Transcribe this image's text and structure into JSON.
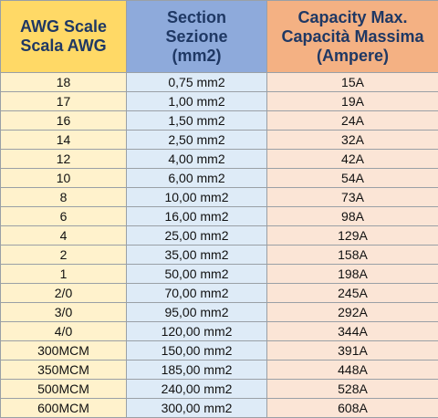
{
  "headers": {
    "awg": "AWG Scale\nScala AWG",
    "section": "Section\nSezione\n(mm2)",
    "capacity": "Capacity Max.\nCapacità Massima\n(Ampere)"
  },
  "colors": {
    "awg_header": "#ffd966",
    "section_header": "#8eaadb",
    "capacity_header": "#f4b183",
    "awg_cells": "#fff2cc",
    "section_cells": "#deebf7",
    "capacity_cells": "#fbe5d6",
    "header_text": "#1f3864"
  },
  "rows": [
    {
      "awg": "18",
      "section": "0,75 mm2",
      "capacity": "15A"
    },
    {
      "awg": "17",
      "section": "1,00 mm2",
      "capacity": "19A"
    },
    {
      "awg": "16",
      "section": "1,50 mm2",
      "capacity": "24A"
    },
    {
      "awg": "14",
      "section": "2,50 mm2",
      "capacity": "32A"
    },
    {
      "awg": "12",
      "section": "4,00 mm2",
      "capacity": "42A"
    },
    {
      "awg": "10",
      "section": "6,00 mm2",
      "capacity": "54A"
    },
    {
      "awg": "8",
      "section": "10,00 mm2",
      "capacity": "73A"
    },
    {
      "awg": "6",
      "section": "16,00 mm2",
      "capacity": "98A"
    },
    {
      "awg": "4",
      "section": "25,00 mm2",
      "capacity": "129A"
    },
    {
      "awg": "2",
      "section": "35,00 mm2",
      "capacity": "158A"
    },
    {
      "awg": "1",
      "section": "50,00 mm2",
      "capacity": "198A"
    },
    {
      "awg": "2/0",
      "section": "70,00 mm2",
      "capacity": "245A"
    },
    {
      "awg": "3/0",
      "section": "95,00 mm2",
      "capacity": "292A"
    },
    {
      "awg": "4/0",
      "section": "120,00 mm2",
      "capacity": "344A"
    },
    {
      "awg": "300MCM",
      "section": "150,00 mm2",
      "capacity": "391A"
    },
    {
      "awg": "350MCM",
      "section": "185,00 mm2",
      "capacity": "448A"
    },
    {
      "awg": "500MCM",
      "section": "240,00 mm2",
      "capacity": "528A"
    },
    {
      "awg": "600MCM",
      "section": "300,00 mm2",
      "capacity": "608A"
    }
  ]
}
